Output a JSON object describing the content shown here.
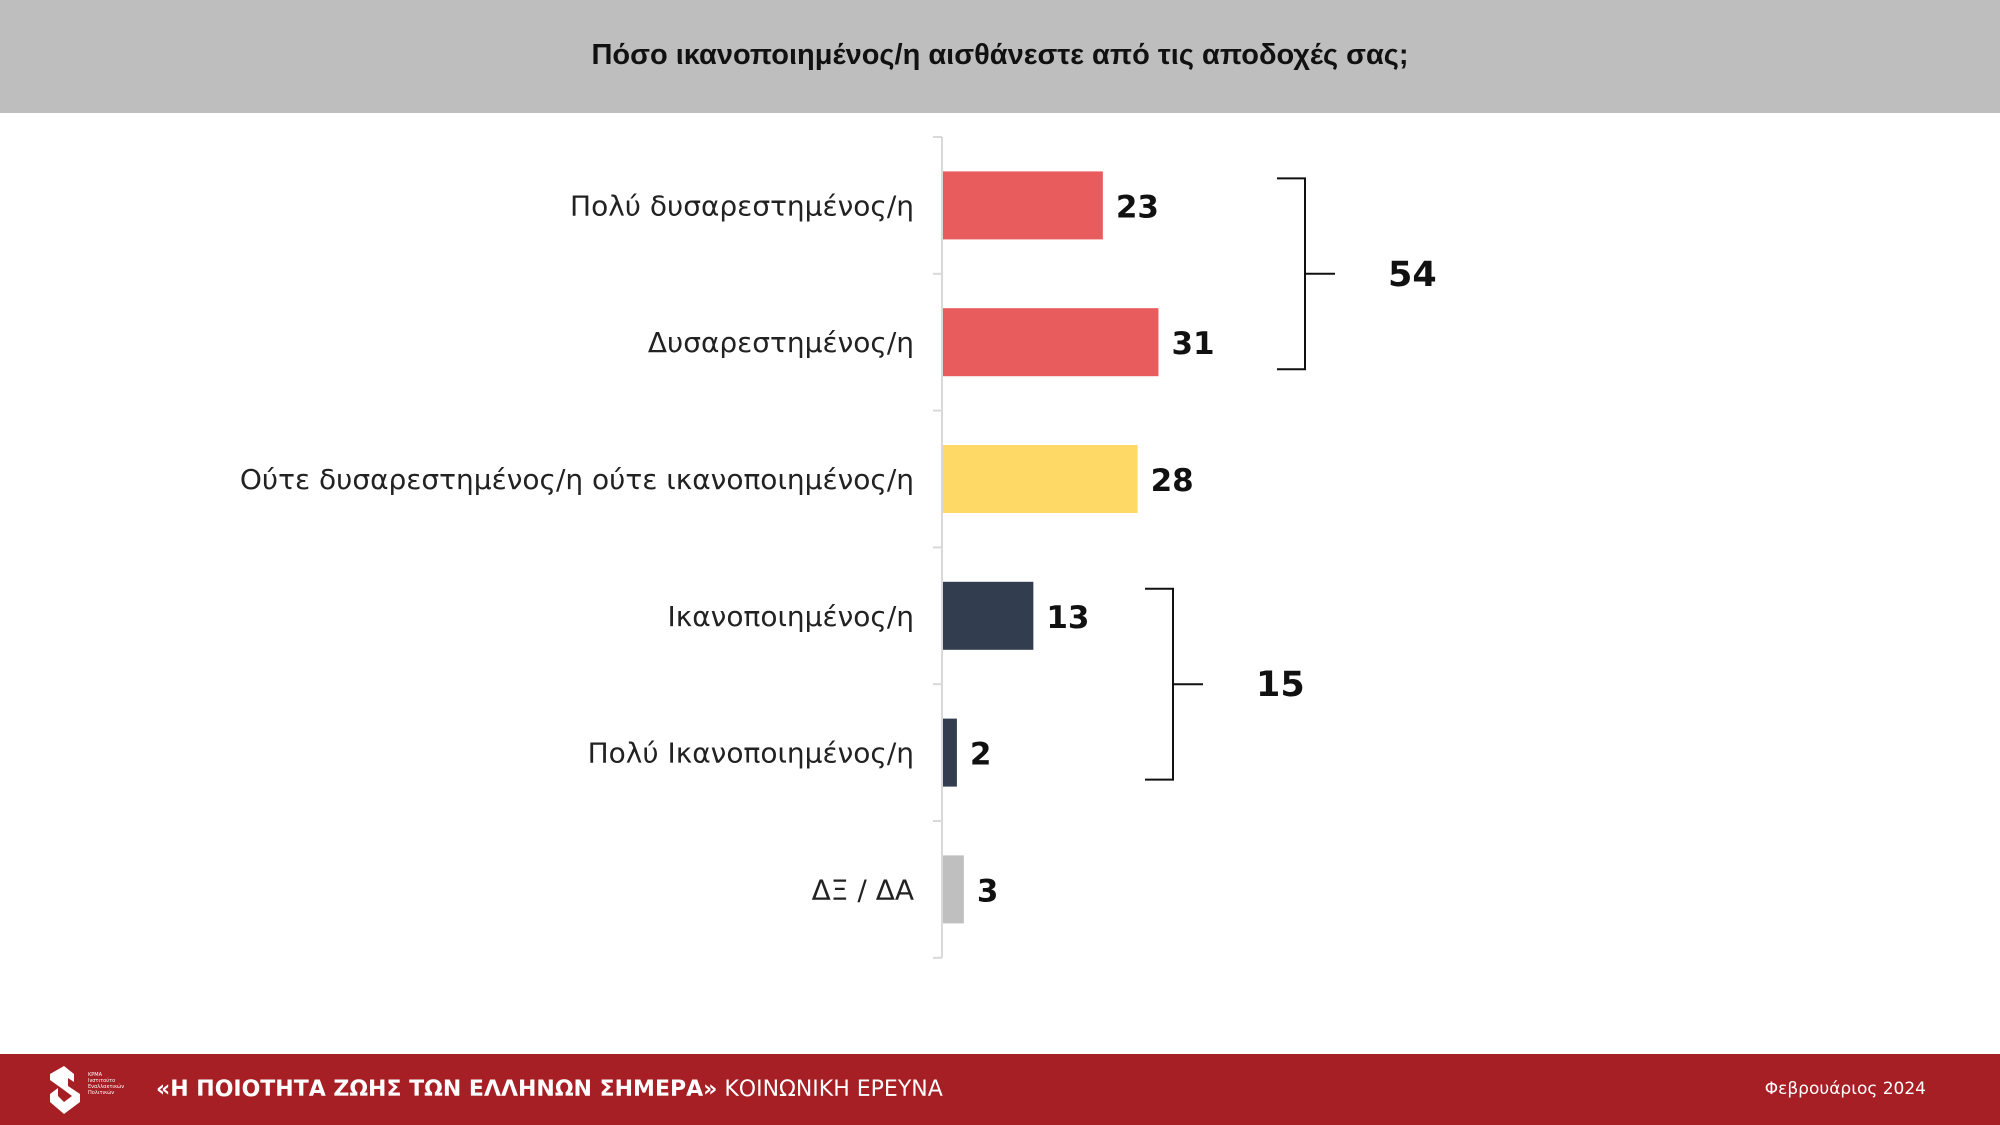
{
  "header": {
    "title": "Πόσο ικανοποιημένος/η αισθάνεστε από τις αποδοχές σας;"
  },
  "chart_data": {
    "type": "bar",
    "orientation": "horizontal",
    "title": "Πόσο ικανοποιημένος/η αισθάνεστε από τις αποδοχές σας;",
    "categories": [
      "Πολύ δυσαρεστημένος/η",
      "Δυσαρεστημένος/η",
      "Ούτε δυσαρεστημένος/η ούτε ικανοποιημένος/η",
      "Ικανοποιημένος/η",
      "Πολύ Ικανοποιημένος/η",
      "ΔΞ / ΔΑ"
    ],
    "values": [
      23,
      31,
      28,
      13,
      2,
      3
    ],
    "colors": [
      "#e85c5e",
      "#e85c5e",
      "#ffd966",
      "#333d50",
      "#333d50",
      "#bfbfbf"
    ],
    "groups": [
      {
        "label": "54",
        "from": 0,
        "to": 1
      },
      {
        "label": "15",
        "from": 3,
        "to": 4
      }
    ],
    "xlabel": "",
    "ylabel": "",
    "grid": false
  },
  "footer": {
    "logo_text": "ΚΡΜΑ Ινστιτούτο Εναλλακτικών Πολιτικών",
    "title_bold": "«Η ΠΟΙΟΤΗΤΑ ΖΩΗΣ ΤΩΝ ΕΛΛΗΝΩΝ ΣΗΜΕΡΑ»",
    "title_rest": " ΚΟΙΝΩΝΙΚΗ ΕΡΕΥΝΑ",
    "date": "Φεβρουάριος 2024"
  }
}
